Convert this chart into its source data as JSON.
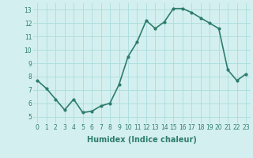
{
  "x": [
    0,
    1,
    2,
    3,
    4,
    5,
    6,
    7,
    8,
    9,
    10,
    11,
    12,
    13,
    14,
    15,
    16,
    17,
    18,
    19,
    20,
    21,
    22,
    23
  ],
  "y": [
    7.7,
    7.1,
    6.3,
    5.5,
    6.3,
    5.3,
    5.4,
    5.8,
    6.0,
    7.4,
    9.5,
    10.6,
    12.2,
    11.6,
    12.1,
    13.1,
    13.1,
    12.8,
    12.4,
    12.0,
    11.6,
    8.5,
    7.7,
    8.2
  ],
  "line_color": "#2e7d6e",
  "marker": "o",
  "marker_size": 2.0,
  "background_color": "#d4efef",
  "grid_color": "#aadddd",
  "xlabel": "Humidex (Indice chaleur)",
  "ylabel": "",
  "title": "",
  "xlim": [
    -0.5,
    23.5
  ],
  "ylim": [
    4.5,
    13.5
  ],
  "yticks": [
    5,
    6,
    7,
    8,
    9,
    10,
    11,
    12,
    13
  ],
  "xticks": [
    0,
    1,
    2,
    3,
    4,
    5,
    6,
    7,
    8,
    9,
    10,
    11,
    12,
    13,
    14,
    15,
    16,
    17,
    18,
    19,
    20,
    21,
    22,
    23
  ],
  "tick_fontsize": 5.5,
  "xlabel_fontsize": 7.0,
  "linewidth": 1.2
}
